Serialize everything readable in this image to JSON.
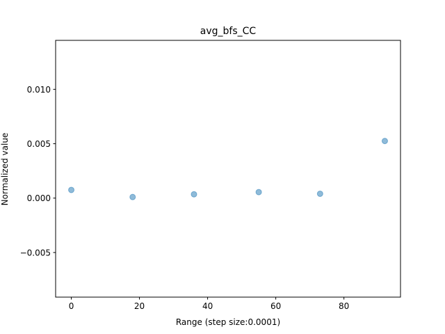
{
  "chart_data": {
    "type": "scatter",
    "title": "avg_bfs_CC",
    "xlabel": "Range (step size:0.0001)",
    "ylabel": "Normalized value",
    "xlim": [
      -4.6,
      96.6
    ],
    "ylim": [
      -0.0091,
      0.0145
    ],
    "xticks": [
      0,
      20,
      40,
      60,
      80
    ],
    "xtick_labels": [
      "0",
      "20",
      "40",
      "60",
      "80"
    ],
    "yticks": [
      -0.005,
      0.0,
      0.005,
      0.01
    ],
    "ytick_labels": [
      "−0.005",
      "0.000",
      "0.005",
      "0.010"
    ],
    "grid": false,
    "marker_color": "#1f77b4",
    "marker_alpha": 0.5,
    "points": [
      {
        "x": 0,
        "y": 0.00075
      },
      {
        "x": 18,
        "y": 0.0001
      },
      {
        "x": 36,
        "y": 0.00035
      },
      {
        "x": 55,
        "y": 0.00055
      },
      {
        "x": 73,
        "y": 0.0004
      },
      {
        "x": 92,
        "y": 0.00525
      }
    ]
  }
}
